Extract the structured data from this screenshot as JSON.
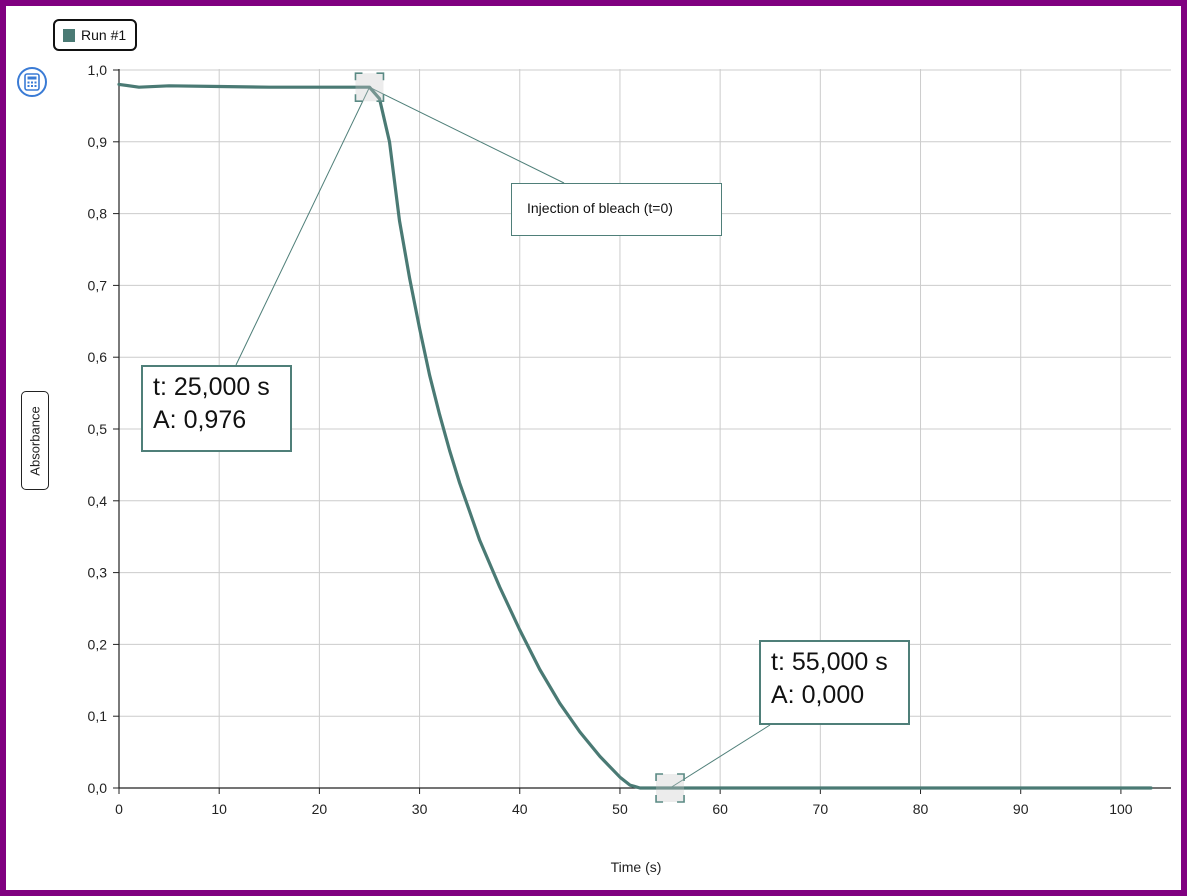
{
  "legend": {
    "label": "Run #1",
    "color": "#4a7a74"
  },
  "toolbar": {
    "calculator_icon": "calculator-icon"
  },
  "colors": {
    "series": "#4a7a74",
    "grid": "#cccccc",
    "frame": "#800080",
    "callout_border": "#4f7f79"
  },
  "callouts": {
    "start": {
      "t": "t: 25,000 s",
      "a": "A: 0,976"
    },
    "end": {
      "t": "t: 55,000 s",
      "a": "A: 0,000"
    },
    "annotation": "Injection of bleach (t=0)"
  },
  "chart_data": {
    "type": "line",
    "xlabel": "Time (s)",
    "ylabel": "Absorbance",
    "xlim": [
      0,
      105
    ],
    "ylim": [
      0,
      1.0
    ],
    "x_ticks": [
      "0",
      "10",
      "20",
      "30",
      "40",
      "50",
      "60",
      "70",
      "80",
      "90",
      "100"
    ],
    "y_ticks": [
      "0,0",
      "0,1",
      "0,2",
      "0,3",
      "0,4",
      "0,5",
      "0,6",
      "0,7",
      "0,8",
      "0,9",
      "1,0"
    ],
    "grid": true,
    "legend_position": "top-left",
    "series": [
      {
        "name": "Run #1",
        "x": [
          0,
          2,
          5,
          10,
          15,
          20,
          24,
          25,
          26,
          27,
          28,
          29,
          30,
          31,
          32,
          33,
          34,
          35,
          36,
          38,
          40,
          42,
          44,
          46,
          48,
          50,
          51,
          52,
          53,
          55,
          60,
          70,
          80,
          90,
          100,
          103
        ],
        "y": [
          0.98,
          0.976,
          0.978,
          0.977,
          0.976,
          0.976,
          0.976,
          0.976,
          0.96,
          0.9,
          0.79,
          0.71,
          0.64,
          0.575,
          0.52,
          0.47,
          0.425,
          0.385,
          0.345,
          0.28,
          0.22,
          0.165,
          0.118,
          0.078,
          0.044,
          0.015,
          0.004,
          0.0,
          0.0,
          0.0,
          0.0,
          0.0,
          0.0,
          0.0,
          0.0,
          0.0
        ]
      }
    ],
    "markers": [
      {
        "x": 25,
        "y": 0.976
      },
      {
        "x": 55,
        "y": 0.0
      }
    ]
  }
}
